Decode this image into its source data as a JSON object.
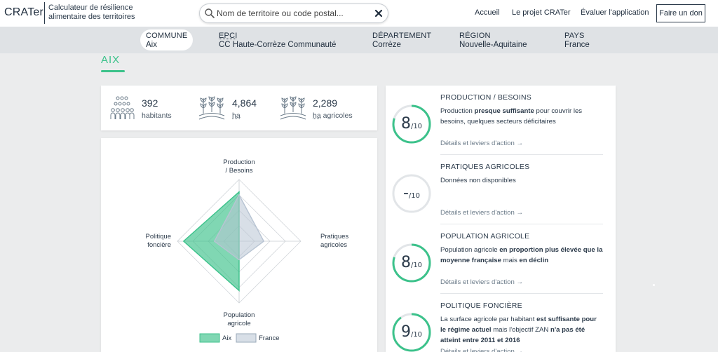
{
  "header": {
    "logo": "CRATer",
    "tagline": "Calculateur de résilience alimentaire des territoires",
    "search_placeholder": "Nom de territoire ou code postal...",
    "nav": [
      "Accueil",
      "Le projet CRATer",
      "Évaluer l'application"
    ],
    "donate_label": "Faire un don"
  },
  "territory_levels": [
    {
      "level": "COMMUNE",
      "value": "Aix",
      "active": true
    },
    {
      "level": "EPCI",
      "value": "CC Haute-Corrèze Communauté",
      "active": false
    },
    {
      "level": "DÉPARTEMENT",
      "value": "Corrèze",
      "active": false
    },
    {
      "level": "RÉGION",
      "value": "Nouvelle-Aquitaine",
      "active": false
    },
    {
      "level": "PAYS",
      "value": "France",
      "active": false
    }
  ],
  "page_title": "AIX",
  "stats": [
    {
      "icon": "people-icon",
      "value": "392",
      "label": "habitants"
    },
    {
      "icon": "crops-icon",
      "value": "4,864",
      "label": "ha"
    },
    {
      "icon": "agricultural-land-icon",
      "value": "2,289",
      "label_unit": "ha",
      "label": "agricoles"
    }
  ],
  "radar": {
    "axes": [
      {
        "name": "Production / Besoins",
        "lines": [
          "Production",
          "/ Besoins"
        ]
      },
      {
        "name": "Pratiques agricoles",
        "lines": [
          "Pratiques",
          "agricoles"
        ]
      },
      {
        "name": "Population agricole",
        "lines": [
          "Population",
          "agricole"
        ]
      },
      {
        "name": "Politique foncière",
        "lines": [
          "Politique",
          "foncière"
        ]
      }
    ],
    "legend": [
      "Aix",
      "France"
    ],
    "colors": {
      "aix": "#3cc28b",
      "france": "#b8c4d3"
    }
  },
  "chart_data": {
    "type": "radar",
    "categories": [
      "Production / Besoins",
      "Pratiques agricoles",
      "Population agricole",
      "Politique foncière"
    ],
    "series": [
      {
        "name": "Aix",
        "values": [
          8,
          0,
          8,
          9
        ]
      },
      {
        "name": "France",
        "values": [
          7.5,
          4,
          3,
          4
        ]
      }
    ],
    "scale": [
      0,
      10
    ]
  },
  "indicators": [
    {
      "title": "PRODUCTION / BESOINS",
      "score": "8",
      "denominator": "/10",
      "value": 8,
      "text_parts": [
        [
          "Production ",
          false
        ],
        [
          "presque suffisante",
          true
        ],
        [
          " pour couvrir les besoins, quelques secteurs déficitaires",
          false
        ]
      ],
      "link": "Détails et leviers d'action →"
    },
    {
      "title": "PRATIQUES AGRICOLES",
      "score": "-",
      "denominator": "/10",
      "value": null,
      "text_parts": [
        [
          "Données non disponibles",
          false
        ]
      ],
      "link": "Détails et leviers d'action →"
    },
    {
      "title": "POPULATION AGRICOLE",
      "score": "8",
      "denominator": "/10",
      "value": 8,
      "text_parts": [
        [
          "Population agricole ",
          false
        ],
        [
          "en proportion plus élevée que la moyenne française",
          true
        ],
        [
          " mais ",
          false
        ],
        [
          "en déclin",
          true
        ]
      ],
      "link": "Détails et leviers d'action →"
    },
    {
      "title": "POLITIQUE FONCIÈRE",
      "score": "9",
      "denominator": "/10",
      "value": 9,
      "text_parts": [
        [
          "La surface agricole par habitant ",
          false
        ],
        [
          "est suffisante pour le régime actuel",
          true
        ],
        [
          " mais l'objectif ",
          false
        ],
        [
          "ZAN",
          false
        ],
        [
          " n'a pas été atteint entre 2011 et 2016",
          true
        ]
      ],
      "link": "Détails et leviers d'action →"
    }
  ]
}
